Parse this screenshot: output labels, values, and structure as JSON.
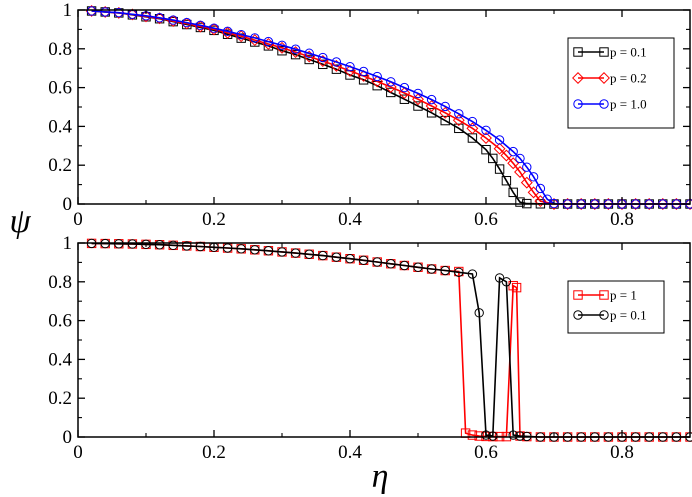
{
  "xlabel": "η",
  "ylabel": "ψ",
  "chart_data": [
    {
      "type": "line",
      "title": "",
      "xlabel": "η",
      "ylabel": "ψ",
      "xlim": [
        0,
        0.9
      ],
      "ylim": [
        0,
        1
      ],
      "xticks": [
        0,
        0.2,
        0.4,
        0.6,
        0.8
      ],
      "yticks": [
        0,
        0.2,
        0.4,
        0.6,
        0.8,
        1
      ],
      "xtick_labels": [
        "0",
        "0.2",
        "0.4",
        "0.6",
        "0.8"
      ],
      "ytick_labels": [
        "0",
        "0.2",
        "0.4",
        "0.6",
        "0.8",
        "1"
      ],
      "legend_position": "top-right",
      "series": [
        {
          "name": "p = 0.1",
          "color": "#000000",
          "marker": "square",
          "x": [
            0.02,
            0.04,
            0.06,
            0.08,
            0.1,
            0.12,
            0.14,
            0.16,
            0.18,
            0.2,
            0.22,
            0.24,
            0.26,
            0.28,
            0.3,
            0.32,
            0.34,
            0.36,
            0.38,
            0.4,
            0.42,
            0.44,
            0.46,
            0.48,
            0.5,
            0.52,
            0.54,
            0.56,
            0.58,
            0.6,
            0.61,
            0.62,
            0.63,
            0.64,
            0.65,
            0.66,
            0.68,
            0.7,
            0.72,
            0.74,
            0.76,
            0.78,
            0.8,
            0.82,
            0.84,
            0.86,
            0.88,
            0.9
          ],
          "y": [
            0.995,
            0.99,
            0.985,
            0.975,
            0.965,
            0.955,
            0.94,
            0.925,
            0.91,
            0.895,
            0.875,
            0.855,
            0.835,
            0.815,
            0.79,
            0.77,
            0.745,
            0.72,
            0.695,
            0.665,
            0.64,
            0.61,
            0.575,
            0.54,
            0.505,
            0.47,
            0.43,
            0.39,
            0.34,
            0.28,
            0.235,
            0.18,
            0.12,
            0.06,
            0.01,
            0.002,
            0.001,
            0,
            0,
            0,
            0,
            0,
            0,
            0,
            0,
            0,
            0,
            0
          ]
        },
        {
          "name": "p = 0.2",
          "color": "#ff0000",
          "marker": "diamond",
          "x": [
            0.02,
            0.04,
            0.06,
            0.08,
            0.1,
            0.12,
            0.14,
            0.16,
            0.18,
            0.2,
            0.22,
            0.24,
            0.26,
            0.28,
            0.3,
            0.32,
            0.34,
            0.36,
            0.38,
            0.4,
            0.42,
            0.44,
            0.46,
            0.48,
            0.5,
            0.52,
            0.54,
            0.56,
            0.58,
            0.6,
            0.62,
            0.63,
            0.64,
            0.65,
            0.66,
            0.67,
            0.68,
            0.7,
            0.72,
            0.74,
            0.76,
            0.78,
            0.8,
            0.82,
            0.84,
            0.86,
            0.88,
            0.9
          ],
          "y": [
            0.995,
            0.99,
            0.985,
            0.977,
            0.967,
            0.957,
            0.943,
            0.93,
            0.915,
            0.9,
            0.882,
            0.865,
            0.845,
            0.825,
            0.805,
            0.783,
            0.76,
            0.737,
            0.712,
            0.686,
            0.66,
            0.632,
            0.603,
            0.572,
            0.54,
            0.505,
            0.47,
            0.432,
            0.39,
            0.34,
            0.285,
            0.25,
            0.21,
            0.165,
            0.11,
            0.06,
            0.015,
            0,
            0,
            0,
            0,
            0,
            0,
            0,
            0,
            0,
            0,
            0
          ]
        },
        {
          "name": "p = 1.0",
          "color": "#0000ff",
          "marker": "circle",
          "x": [
            0.02,
            0.04,
            0.06,
            0.08,
            0.1,
            0.12,
            0.14,
            0.16,
            0.18,
            0.2,
            0.22,
            0.24,
            0.26,
            0.28,
            0.3,
            0.32,
            0.34,
            0.36,
            0.38,
            0.4,
            0.42,
            0.44,
            0.46,
            0.48,
            0.5,
            0.52,
            0.54,
            0.56,
            0.58,
            0.6,
            0.62,
            0.64,
            0.65,
            0.66,
            0.67,
            0.68,
            0.69,
            0.7,
            0.72,
            0.74,
            0.76,
            0.78,
            0.8,
            0.82,
            0.84,
            0.86,
            0.88,
            0.9
          ],
          "y": [
            0.995,
            0.99,
            0.986,
            0.978,
            0.97,
            0.96,
            0.948,
            0.935,
            0.921,
            0.906,
            0.89,
            0.873,
            0.856,
            0.837,
            0.818,
            0.798,
            0.777,
            0.755,
            0.732,
            0.708,
            0.683,
            0.657,
            0.63,
            0.6,
            0.57,
            0.538,
            0.503,
            0.465,
            0.425,
            0.38,
            0.33,
            0.27,
            0.235,
            0.19,
            0.14,
            0.08,
            0.025,
            0.002,
            0,
            0,
            0,
            0,
            0,
            0,
            0,
            0,
            0,
            0
          ]
        }
      ]
    },
    {
      "type": "line",
      "title": "",
      "xlabel": "η",
      "ylabel": "ψ",
      "xlim": [
        0,
        0.9
      ],
      "ylim": [
        0,
        1
      ],
      "xticks": [
        0,
        0.2,
        0.4,
        0.6,
        0.8
      ],
      "yticks": [
        0,
        0.2,
        0.4,
        0.6,
        0.8,
        1
      ],
      "xtick_labels": [
        "0",
        "0.2",
        "0.4",
        "0.6",
        "0.8"
      ],
      "ytick_labels": [
        "0",
        "0.2",
        "0.4",
        "0.6",
        "0.8",
        "1"
      ],
      "legend_position": "right",
      "series": [
        {
          "name": "p = 1",
          "color": "#ff0000",
          "marker": "square",
          "x": [
            0.02,
            0.04,
            0.06,
            0.08,
            0.1,
            0.12,
            0.14,
            0.16,
            0.18,
            0.2,
            0.22,
            0.24,
            0.26,
            0.28,
            0.3,
            0.32,
            0.34,
            0.36,
            0.38,
            0.4,
            0.42,
            0.44,
            0.46,
            0.48,
            0.5,
            0.52,
            0.54,
            0.56,
            0.57,
            0.58,
            0.59,
            0.6,
            0.61,
            0.62,
            0.63,
            0.64,
            0.645,
            0.65,
            0.66,
            0.68,
            0.7,
            0.72,
            0.74,
            0.76,
            0.78,
            0.8,
            0.82,
            0.84,
            0.86,
            0.88,
            0.9
          ],
          "y": [
            0.998,
            0.997,
            0.996,
            0.995,
            0.993,
            0.991,
            0.988,
            0.985,
            0.982,
            0.978,
            0.974,
            0.97,
            0.965,
            0.96,
            0.954,
            0.948,
            0.942,
            0.935,
            0.927,
            0.919,
            0.911,
            0.902,
            0.893,
            0.884,
            0.875,
            0.866,
            0.858,
            0.853,
            0.02,
            0.01,
            0.005,
            0.003,
            0.002,
            0.002,
            0.002,
            0.78,
            0.77,
            0.005,
            0.002,
            0,
            0,
            0,
            0,
            0,
            0,
            0,
            0,
            0,
            0,
            0,
            0
          ]
        },
        {
          "name": "p = 0.1",
          "color": "#000000",
          "marker": "circle",
          "x": [
            0.02,
            0.04,
            0.06,
            0.08,
            0.1,
            0.12,
            0.14,
            0.16,
            0.18,
            0.2,
            0.22,
            0.24,
            0.26,
            0.28,
            0.3,
            0.32,
            0.34,
            0.36,
            0.38,
            0.4,
            0.42,
            0.44,
            0.46,
            0.48,
            0.5,
            0.52,
            0.54,
            0.56,
            0.58,
            0.59,
            0.6,
            0.61,
            0.62,
            0.63,
            0.64,
            0.65,
            0.66,
            0.68,
            0.7,
            0.72,
            0.74,
            0.76,
            0.78,
            0.8,
            0.82,
            0.84,
            0.86,
            0.88,
            0.9
          ],
          "y": [
            0.998,
            0.997,
            0.996,
            0.995,
            0.993,
            0.991,
            0.988,
            0.985,
            0.982,
            0.978,
            0.974,
            0.97,
            0.965,
            0.96,
            0.954,
            0.948,
            0.942,
            0.935,
            0.927,
            0.919,
            0.911,
            0.902,
            0.893,
            0.884,
            0.875,
            0.866,
            0.858,
            0.849,
            0.84,
            0.64,
            0.01,
            0.005,
            0.82,
            0.8,
            0.01,
            0.005,
            0.003,
            0,
            0,
            0,
            0,
            0,
            0,
            0,
            0,
            0,
            0,
            0,
            0
          ]
        }
      ]
    }
  ]
}
